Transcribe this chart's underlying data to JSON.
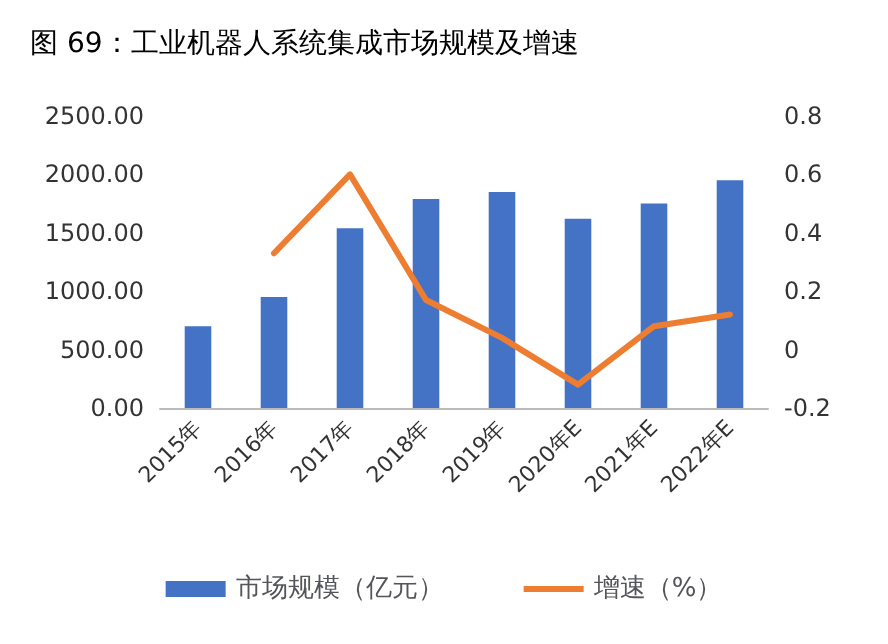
{
  "chart_data": {
    "type": "bar",
    "title": "图 69：工业机器人系统集成市场规模及增速",
    "categories": [
      "2015年",
      "2016年",
      "2017年",
      "2018年",
      "2019年",
      "2020年E",
      "2021年E",
      "2022年E"
    ],
    "series": [
      {
        "name": "市场规模（亿元）",
        "color": "#4472c4",
        "values": [
          700,
          950,
          1540,
          1790,
          1850,
          1620,
          1750,
          1950
        ]
      },
      {
        "name": "增速（%）",
        "type": "line",
        "axis": "y2",
        "color": "#ed7d31",
        "values": [
          null,
          0.33,
          0.6,
          0.17,
          0.04,
          -0.12,
          0.08,
          0.12
        ]
      }
    ],
    "ylim": [
      0,
      2500
    ],
    "yticks": [
      {
        "value": 0,
        "label": "0.00"
      },
      {
        "value": 500,
        "label": "500.00"
      },
      {
        "value": 1000,
        "label": "1000.00"
      },
      {
        "value": 1500,
        "label": "1500.00"
      },
      {
        "value": 2000,
        "label": "2000.00"
      },
      {
        "value": 2500,
        "label": "2500.00"
      }
    ],
    "y2lim": [
      -0.2,
      0.8
    ],
    "y2ticks": [
      -0.2,
      0,
      0.2,
      0.4,
      0.6,
      0.8
    ],
    "grid": false,
    "legend": "bottom",
    "marker": "none",
    "line_style": "solid"
  }
}
